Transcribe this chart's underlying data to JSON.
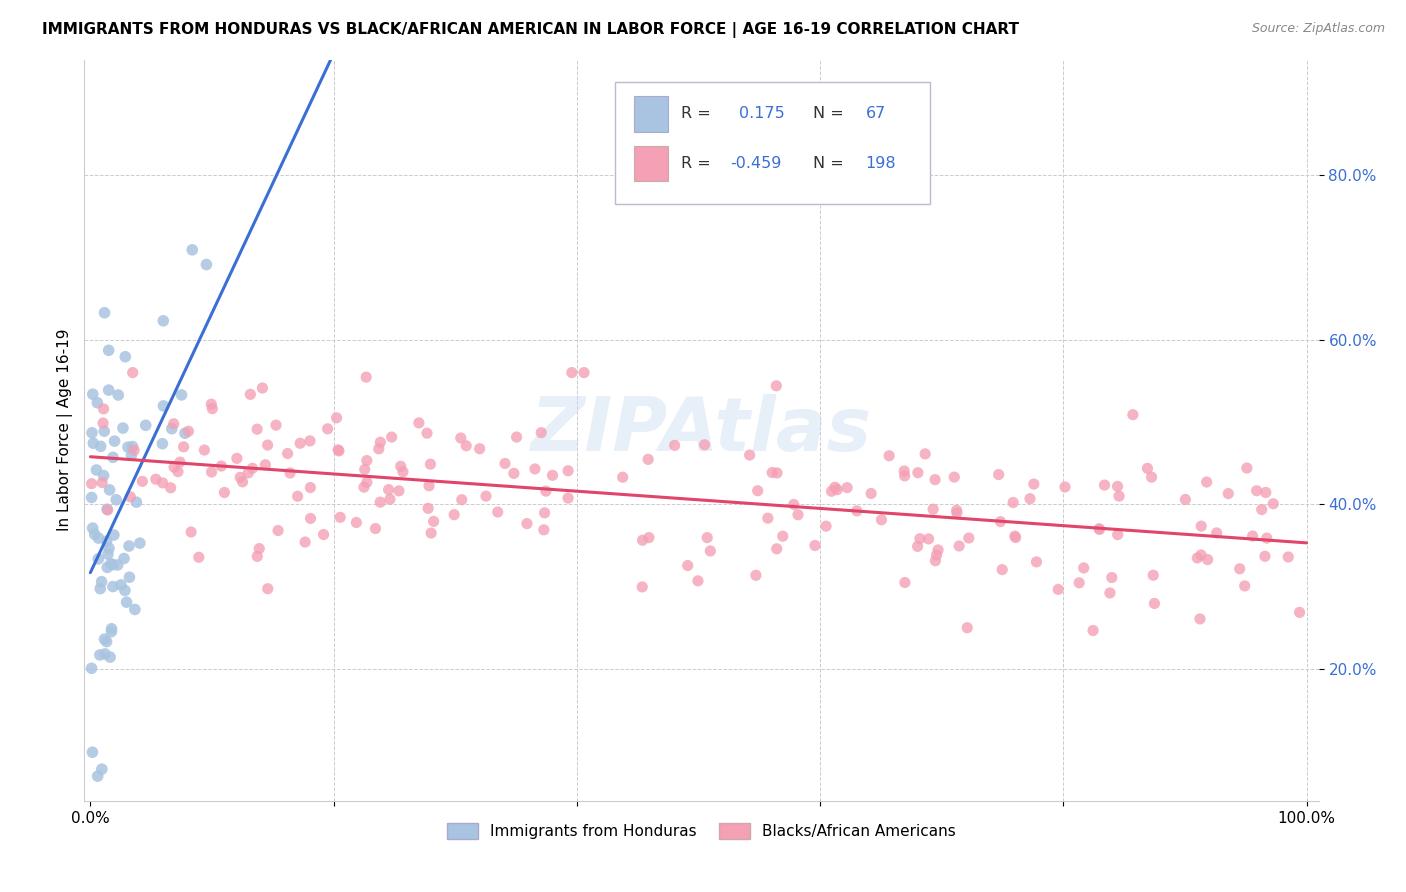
{
  "title": "IMMIGRANTS FROM HONDURAS VS BLACK/AFRICAN AMERICAN IN LABOR FORCE | AGE 16-19 CORRELATION CHART",
  "source": "Source: ZipAtlas.com",
  "ylabel": "In Labor Force | Age 16-19",
  "y_ticks": [
    0.2,
    0.4,
    0.6,
    0.8
  ],
  "y_tick_labels": [
    "20.0%",
    "40.0%",
    "60.0%",
    "80.0%"
  ],
  "blue_R": 0.175,
  "blue_N": 67,
  "pink_R": -0.459,
  "pink_N": 198,
  "blue_color": "#a8c4e0",
  "pink_color": "#f4a0b5",
  "blue_line_color": "#3b6fd4",
  "pink_line_color": "#e0456a",
  "dashed_line_color": "#b0b8c8",
  "watermark": "ZIPAtlas",
  "legend_blue_label": "Immigrants from Honduras",
  "legend_pink_label": "Blacks/African Americans",
  "xlim": [
    0.0,
    1.0
  ],
  "ylim": [
    0.04,
    0.94
  ]
}
